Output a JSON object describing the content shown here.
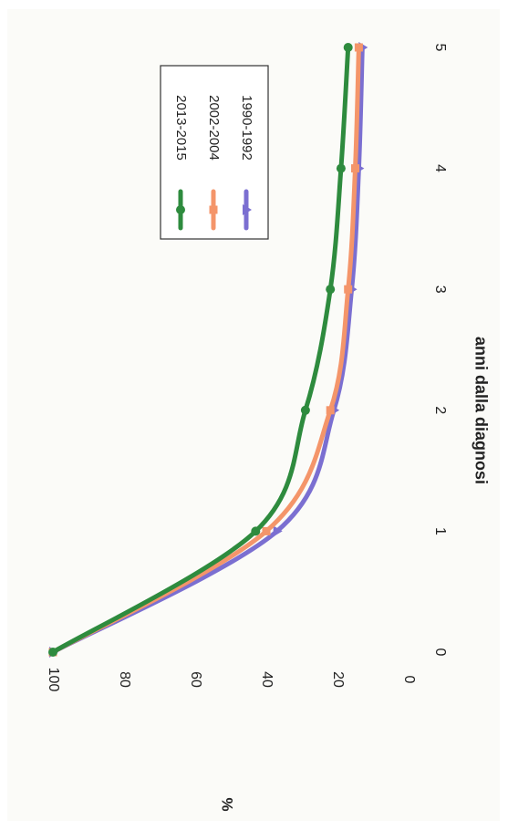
{
  "chart_data": {
    "type": "line",
    "orientation": "rotated-90-clockwise",
    "xlabel": "anni dalla diagnosi",
    "ylabel": "%",
    "x": [
      0,
      1,
      2,
      3,
      4,
      5
    ],
    "xlim": [
      0,
      5
    ],
    "ylim": [
      0,
      100
    ],
    "xticks": [
      "0",
      "1",
      "2",
      "3",
      "4",
      "5"
    ],
    "yticks": [
      "0",
      "20",
      "40",
      "60",
      "80",
      "100"
    ],
    "grid": false,
    "legend_position": "top-right",
    "series": [
      {
        "name": "2013-2015",
        "color": "#2e8b3e",
        "marker": "circle",
        "values": [
          100,
          43,
          29,
          22,
          19,
          17
        ]
      },
      {
        "name": "2002-2004",
        "color": "#f4956a",
        "marker": "square",
        "values": [
          100,
          40,
          22,
          17,
          15,
          14
        ]
      },
      {
        "name": "1990-1992",
        "color": "#7b6fd1",
        "marker": "triangle",
        "values": [
          100,
          37,
          21,
          16,
          14,
          13
        ]
      }
    ]
  }
}
